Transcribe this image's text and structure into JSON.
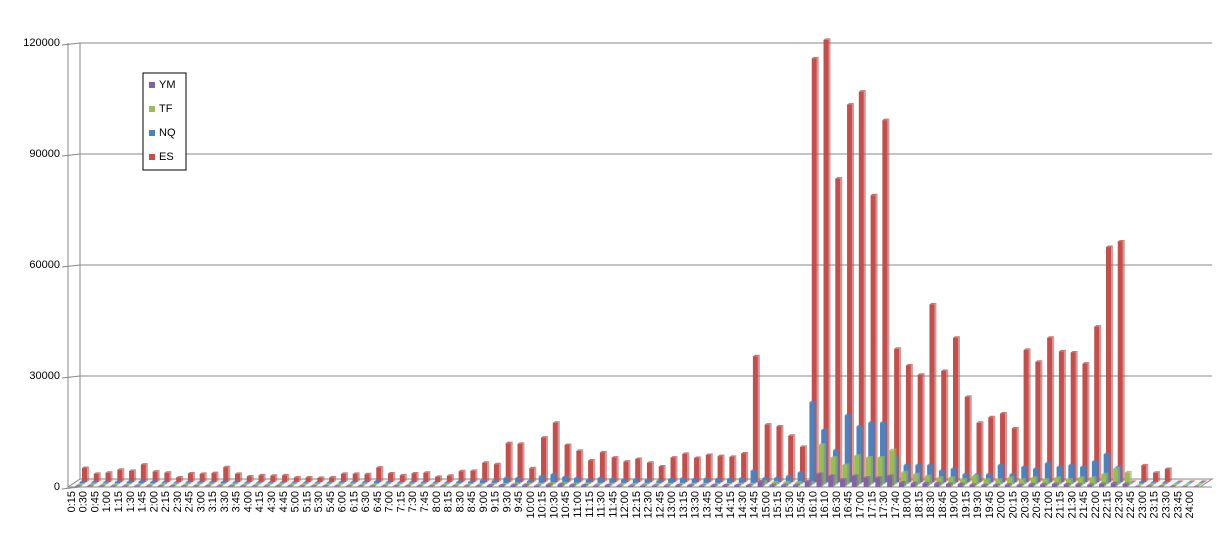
{
  "chart_data": {
    "type": "bar3d",
    "categories": [
      "0:15",
      "0:30",
      "0:45",
      "1:00",
      "1:15",
      "1:30",
      "1:45",
      "2:00",
      "2:15",
      "2:30",
      "2:45",
      "3:00",
      "3:15",
      "3:30",
      "3:45",
      "4:00",
      "4:15",
      "4:30",
      "4:45",
      "5:00",
      "5:15",
      "5:30",
      "5:45",
      "6:00",
      "6:15",
      "6:30",
      "6:45",
      "7:00",
      "7:15",
      "7:30",
      "7:45",
      "8:00",
      "8:15",
      "8:30",
      "8:45",
      "9:00",
      "9:15",
      "9:30",
      "9:45",
      "10:00",
      "10:15",
      "10:30",
      "10:45",
      "11:00",
      "11:15",
      "11:30",
      "11:45",
      "12:00",
      "12:15",
      "12:30",
      "12:45",
      "13:00",
      "13:15",
      "13:30",
      "13:45",
      "14:00",
      "14:15",
      "14:30",
      "14:45",
      "15:00",
      "15:15",
      "15:30",
      "15:45",
      "16:10",
      "16:10",
      "16:30",
      "16:45",
      "17:00",
      "17:15",
      "17:30",
      "17:40",
      "18:00",
      "18:15",
      "18:30",
      "18:45",
      "19:00",
      "19:15",
      "19:30",
      "19:45",
      "20:00",
      "20:15",
      "20:30",
      "20:45",
      "21:00",
      "21:15",
      "21:30",
      "21:45",
      "22:00",
      "22:15",
      "22:30",
      "22:45",
      "23:00",
      "23:15",
      "23:30",
      "23:45",
      "24:00"
    ],
    "series": [
      {
        "name": "YM",
        "color": "#8064a2",
        "values": [
          200,
          200,
          200,
          200,
          200,
          200,
          200,
          200,
          200,
          200,
          200,
          200,
          200,
          200,
          200,
          200,
          200,
          200,
          200,
          200,
          200,
          200,
          200,
          200,
          200,
          200,
          200,
          200,
          200,
          200,
          200,
          200,
          200,
          200,
          200,
          400,
          400,
          500,
          500,
          300,
          600,
          700,
          500,
          400,
          300,
          400,
          300,
          300,
          300,
          300,
          300,
          400,
          400,
          300,
          400,
          400,
          400,
          400,
          1500,
          500,
          500,
          500,
          1500,
          3500,
          3000,
          2000,
          3000,
          2500,
          2500,
          3000,
          1200,
          1000,
          1000,
          1000,
          800,
          800,
          600,
          500,
          500,
          600,
          500,
          700,
          700,
          800,
          700,
          700,
          600,
          800,
          1000,
          800,
          0,
          200,
          100,
          100,
          0,
          0
        ]
      },
      {
        "name": "TF",
        "color": "#9bbb59",
        "values": [
          200,
          200,
          200,
          200,
          200,
          200,
          200,
          200,
          200,
          200,
          200,
          200,
          200,
          200,
          200,
          200,
          200,
          200,
          200,
          200,
          200,
          200,
          200,
          200,
          200,
          200,
          200,
          200,
          200,
          200,
          200,
          200,
          200,
          200,
          200,
          300,
          300,
          400,
          400,
          300,
          500,
          600,
          400,
          400,
          300,
          300,
          300,
          300,
          300,
          300,
          300,
          300,
          300,
          300,
          300,
          300,
          300,
          300,
          1000,
          800,
          800,
          800,
          800,
          11000,
          7500,
          5500,
          8000,
          7500,
          7500,
          9500,
          3500,
          3000,
          2500,
          2000,
          2000,
          1500,
          2500,
          1500,
          1500,
          2000,
          1500,
          2000,
          1500,
          2000,
          1500,
          2000,
          2000,
          3000,
          4500,
          3500,
          0,
          200,
          100,
          100,
          0,
          0
        ]
      },
      {
        "name": "NQ",
        "color": "#4f81bd",
        "values": [
          500,
          400,
          400,
          500,
          500,
          600,
          500,
          400,
          300,
          400,
          400,
          400,
          500,
          400,
          300,
          300,
          300,
          300,
          300,
          300,
          300,
          300,
          400,
          400,
          400,
          600,
          400,
          300,
          400,
          400,
          300,
          300,
          500,
          500,
          900,
          800,
          1500,
          1500,
          700,
          2000,
          2500,
          1800,
          1500,
          1000,
          1500,
          1200,
          1000,
          1100,
          1000,
          800,
          1200,
          1400,
          1200,
          1300,
          1300,
          1200,
          1400,
          3500,
          1500,
          1500,
          2000,
          3000,
          22000,
          14500,
          9000,
          18500,
          15500,
          16500,
          16500,
          7000,
          5000,
          5000,
          5000,
          3500,
          4000,
          2500,
          2500,
          2500,
          5000,
          2500,
          4500,
          4000,
          5500,
          4500,
          5000,
          4500,
          6000,
          8000,
          4500,
          0,
          500,
          300,
          300,
          0,
          0,
          0
        ]
      },
      {
        "name": "ES",
        "color": "#c0504d",
        "values": [
          3800,
          2200,
          2500,
          3300,
          3000,
          4700,
          2800,
          2500,
          1200,
          2300,
          2200,
          2400,
          4000,
          2200,
          1500,
          1800,
          1700,
          1800,
          1200,
          1200,
          1100,
          1200,
          2200,
          2200,
          2100,
          3900,
          2300,
          1800,
          2300,
          2500,
          1400,
          1700,
          2900,
          3000,
          5200,
          4800,
          10500,
          10300,
          3700,
          12000,
          16000,
          10000,
          8400,
          5800,
          8000,
          6600,
          5500,
          6200,
          5200,
          4200,
          6600,
          7600,
          6500,
          7300,
          7000,
          6800,
          7700,
          34000,
          15500,
          15000,
          12500,
          9500,
          114500,
          119500,
          82000,
          102000,
          105500,
          77500,
          97800,
          36000,
          31500,
          29000,
          48000,
          30000,
          39000,
          23000,
          16000,
          17500,
          18500,
          14500,
          35700,
          32500,
          39000,
          35300,
          35000,
          32000,
          42000,
          63500,
          65000,
          0,
          4500,
          2500,
          3500,
          0,
          0,
          0
        ]
      }
    ],
    "ylim": [
      0,
      120000
    ],
    "yticks": [
      0,
      30000,
      60000,
      90000,
      120000
    ],
    "grid": true,
    "legend": "top-left"
  }
}
